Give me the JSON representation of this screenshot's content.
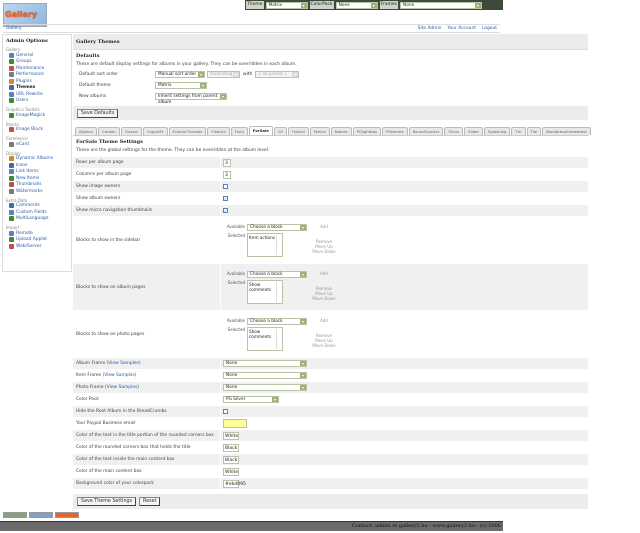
{
  "topbar": {
    "theme_label": "Theme",
    "theme_value": "Matrix",
    "colorpack_label": "ColorPack",
    "colorpack_value": "None",
    "frames_label": "Frames",
    "frames_value": "None"
  },
  "logo_text": "Gallery",
  "breadcrumb": "Gallery",
  "header_links": [
    "Site Admin",
    "Your Account",
    "Logout"
  ],
  "sidebar": {
    "title": "Admin Options",
    "groups": [
      {
        "name": "Gallery",
        "items": [
          "General",
          "Groups",
          "Maintenance",
          "Performance",
          "Plugins",
          "Themes",
          "URL Rewrite",
          "Users"
        ]
      },
      {
        "name": "Graphics Toolkits",
        "items": [
          "ImageMagick"
        ]
      },
      {
        "name": "Blocks",
        "items": [
          "Image Block"
        ]
      },
      {
        "name": "Commerce",
        "items": [
          "eCard"
        ]
      },
      {
        "name": "Display",
        "items": [
          "Dynamic Albums",
          "Icons",
          "Link Items",
          "New Items",
          "Thumbnails",
          "Watermarks"
        ]
      },
      {
        "name": "Extra Data",
        "items": [
          "Comments",
          "Custom Fields",
          "MultiLanguage"
        ]
      },
      {
        "name": "Import",
        "items": [
          "Remote",
          "Upload Applet",
          "Web/Server"
        ]
      }
    ],
    "active": "Themes"
  },
  "main": {
    "title": "Gallery Themes",
    "defaults": {
      "heading": "Defaults",
      "description": "These are default display settings for albums in your gallery. They can be overridden in each album.",
      "sort_label": "Default sort order",
      "sort_value": "Manual sort order",
      "sort_dir": "Ascending",
      "with_label": "with",
      "preset": "« no preset »",
      "theme_label": "Default theme",
      "theme_value": "Matrix",
      "new_albums_label": "New albums",
      "new_albums_value": "Inherit settings from parent album",
      "save_button": "Save Defaults"
    },
    "tabs": [
      "Ajaxian",
      "Carbon",
      "Classic",
      "CopyleFt",
      "EclecticThreads",
      "Floatrix",
      "Fluid",
      "ForSale",
      "G2",
      "Hybrid",
      "Matrix",
      "Nature",
      "PGlightbox",
      "PGtheme",
      "RoundCorners",
      "Siriux",
      "Slider",
      "Splashing",
      "Tm",
      "Tile",
      "WordpressEmbedded"
    ],
    "active_tab": "ForSale",
    "theme_settings": {
      "heading": "ForSale Theme Settings",
      "description": "These are the global settings for the theme. They can be overridden at the album level.",
      "rows_label": "Rows per album page",
      "rows_value": "3",
      "cols_label": "Columns per album page",
      "cols_value": "3",
      "image_owners_label": "Show image owners",
      "image_owners": false,
      "album_owners_label": "Show album owners",
      "album_owners": true,
      "micro_nav_label": "Show micro navigation thumbnails",
      "micro_nav": true,
      "block_labels": {
        "available": "Available",
        "selected": "Selected",
        "choose": "Choose a block",
        "add": "Add",
        "remove": "Remove",
        "up": "Move Up",
        "down": "Move Down"
      },
      "blocks": [
        {
          "label": "Blocks to show in the sidebar",
          "selected": "Item actions"
        },
        {
          "label": "Blocks to show on album pages",
          "selected": "Show comments"
        },
        {
          "label": "Blocks to show on photo pages",
          "selected": "Show comments"
        }
      ],
      "view_samples": "View Samples",
      "album_frame_label": "Album Frame",
      "album_frame": "None",
      "item_frame_label": "Item Frame",
      "item_frame": "None",
      "photo_frame_label": "Photo Frame",
      "photo_frame": "None",
      "color_pack_label": "Color Pack",
      "color_pack": "PG Silver",
      "hide_root_label": "Hide the Root Album in the BreadCrumbs",
      "hide_root": false,
      "paypal_label": "Your Paypal Business email",
      "paypal_value": "",
      "title_text_color_label": "Color of the text in the title portion of the rounded corners box",
      "title_text_color": "White",
      "rounded_box_color_label": "Color of the rounded corners box that holds the title",
      "rounded_box_color": "Black",
      "main_text_color_label": "Color of the text inside the main content box",
      "main_text_color": "Black",
      "main_box_color_label": "Color of the main content box",
      "main_box_color": "White",
      "bg_color_label": "Background color of your colorpack",
      "bg_color": "#ebd095",
      "save_button": "Save Theme Settings",
      "reset_button": "Reset"
    }
  },
  "footer": "Contact: admin at gallery2.hu - www.gallery2.hu - (c) 2006",
  "colors": {
    "link": "#2a5aa8",
    "band": "#ececec",
    "footer": "#6b6b6b",
    "paypal_field": "#ffff99"
  }
}
